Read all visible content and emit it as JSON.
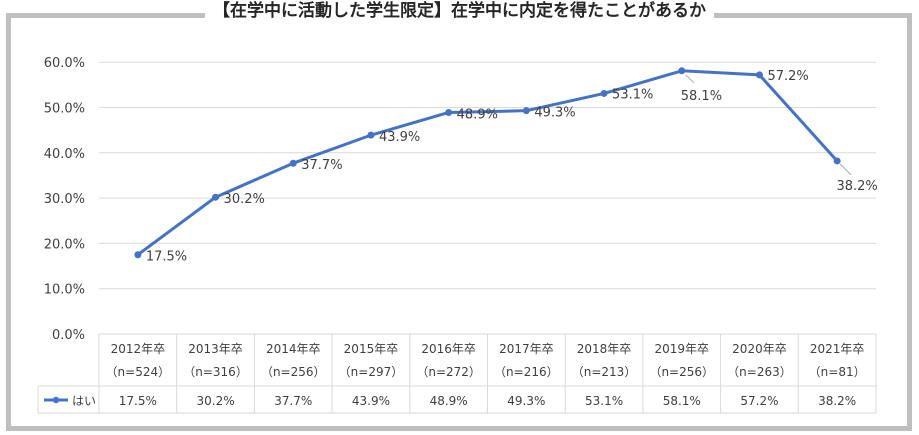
{
  "title": "【在学中に活動した学生限定】在学中に内定を得たことがあるか",
  "chart_data": {
    "type": "line",
    "categories": [
      [
        "2012年卒",
        "（n=524）"
      ],
      [
        "2013年卒",
        "（n=316）"
      ],
      [
        "2014年卒",
        "（n=256）"
      ],
      [
        "2015年卒",
        "（n=297）"
      ],
      [
        "2016年卒",
        "（n=272）"
      ],
      [
        "2017年卒",
        "（n=216）"
      ],
      [
        "2018年卒",
        "（n=213）"
      ],
      [
        "2019年卒",
        "（n=256）"
      ],
      [
        "2020年卒",
        "（n=263）"
      ],
      [
        "2021年卒",
        "（n=81）"
      ]
    ],
    "series": [
      {
        "name": "はい",
        "values": [
          17.5,
          30.2,
          37.7,
          43.9,
          48.9,
          49.3,
          53.1,
          58.1,
          57.2,
          38.2
        ],
        "labels": [
          "17.5%",
          "30.2%",
          "37.7%",
          "43.9%",
          "48.9%",
          "49.3%",
          "53.1%",
          "58.1%",
          "57.2%",
          "38.2%"
        ],
        "color": "#4472c4"
      }
    ],
    "yticks": [
      "0.0%",
      "10.0%",
      "20.0%",
      "30.0%",
      "40.0%",
      "50.0%",
      "60.0%"
    ],
    "ylim": [
      0,
      65
    ],
    "grid": true,
    "data_table": true
  }
}
